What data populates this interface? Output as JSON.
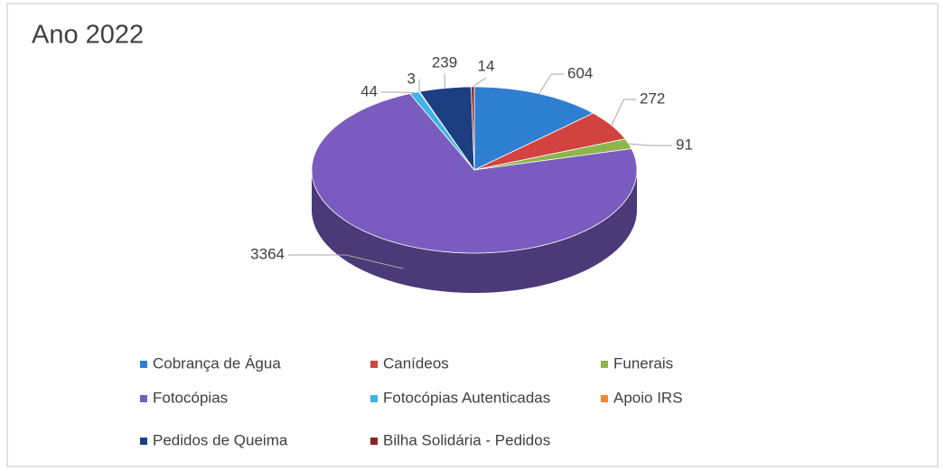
{
  "chart_data": {
    "type": "pie",
    "title": "Ano 2022",
    "categories": [
      "Cobrança de Água",
      "Canídeos",
      "Funerais",
      "Fotocópias",
      "Fotocópias Autenticadas",
      "Apoio IRS",
      "Pedidos de Queima",
      "Bilha Solidária - Pedidos"
    ],
    "values": [
      604,
      272,
      91,
      3364,
      44,
      3,
      239,
      14
    ],
    "colors": [
      "#2f7fd1",
      "#d2433f",
      "#8db54b",
      "#7a5cc0",
      "#3db4e4",
      "#f08a32",
      "#1d3f82",
      "#8e2222"
    ],
    "legend": "bottom"
  }
}
